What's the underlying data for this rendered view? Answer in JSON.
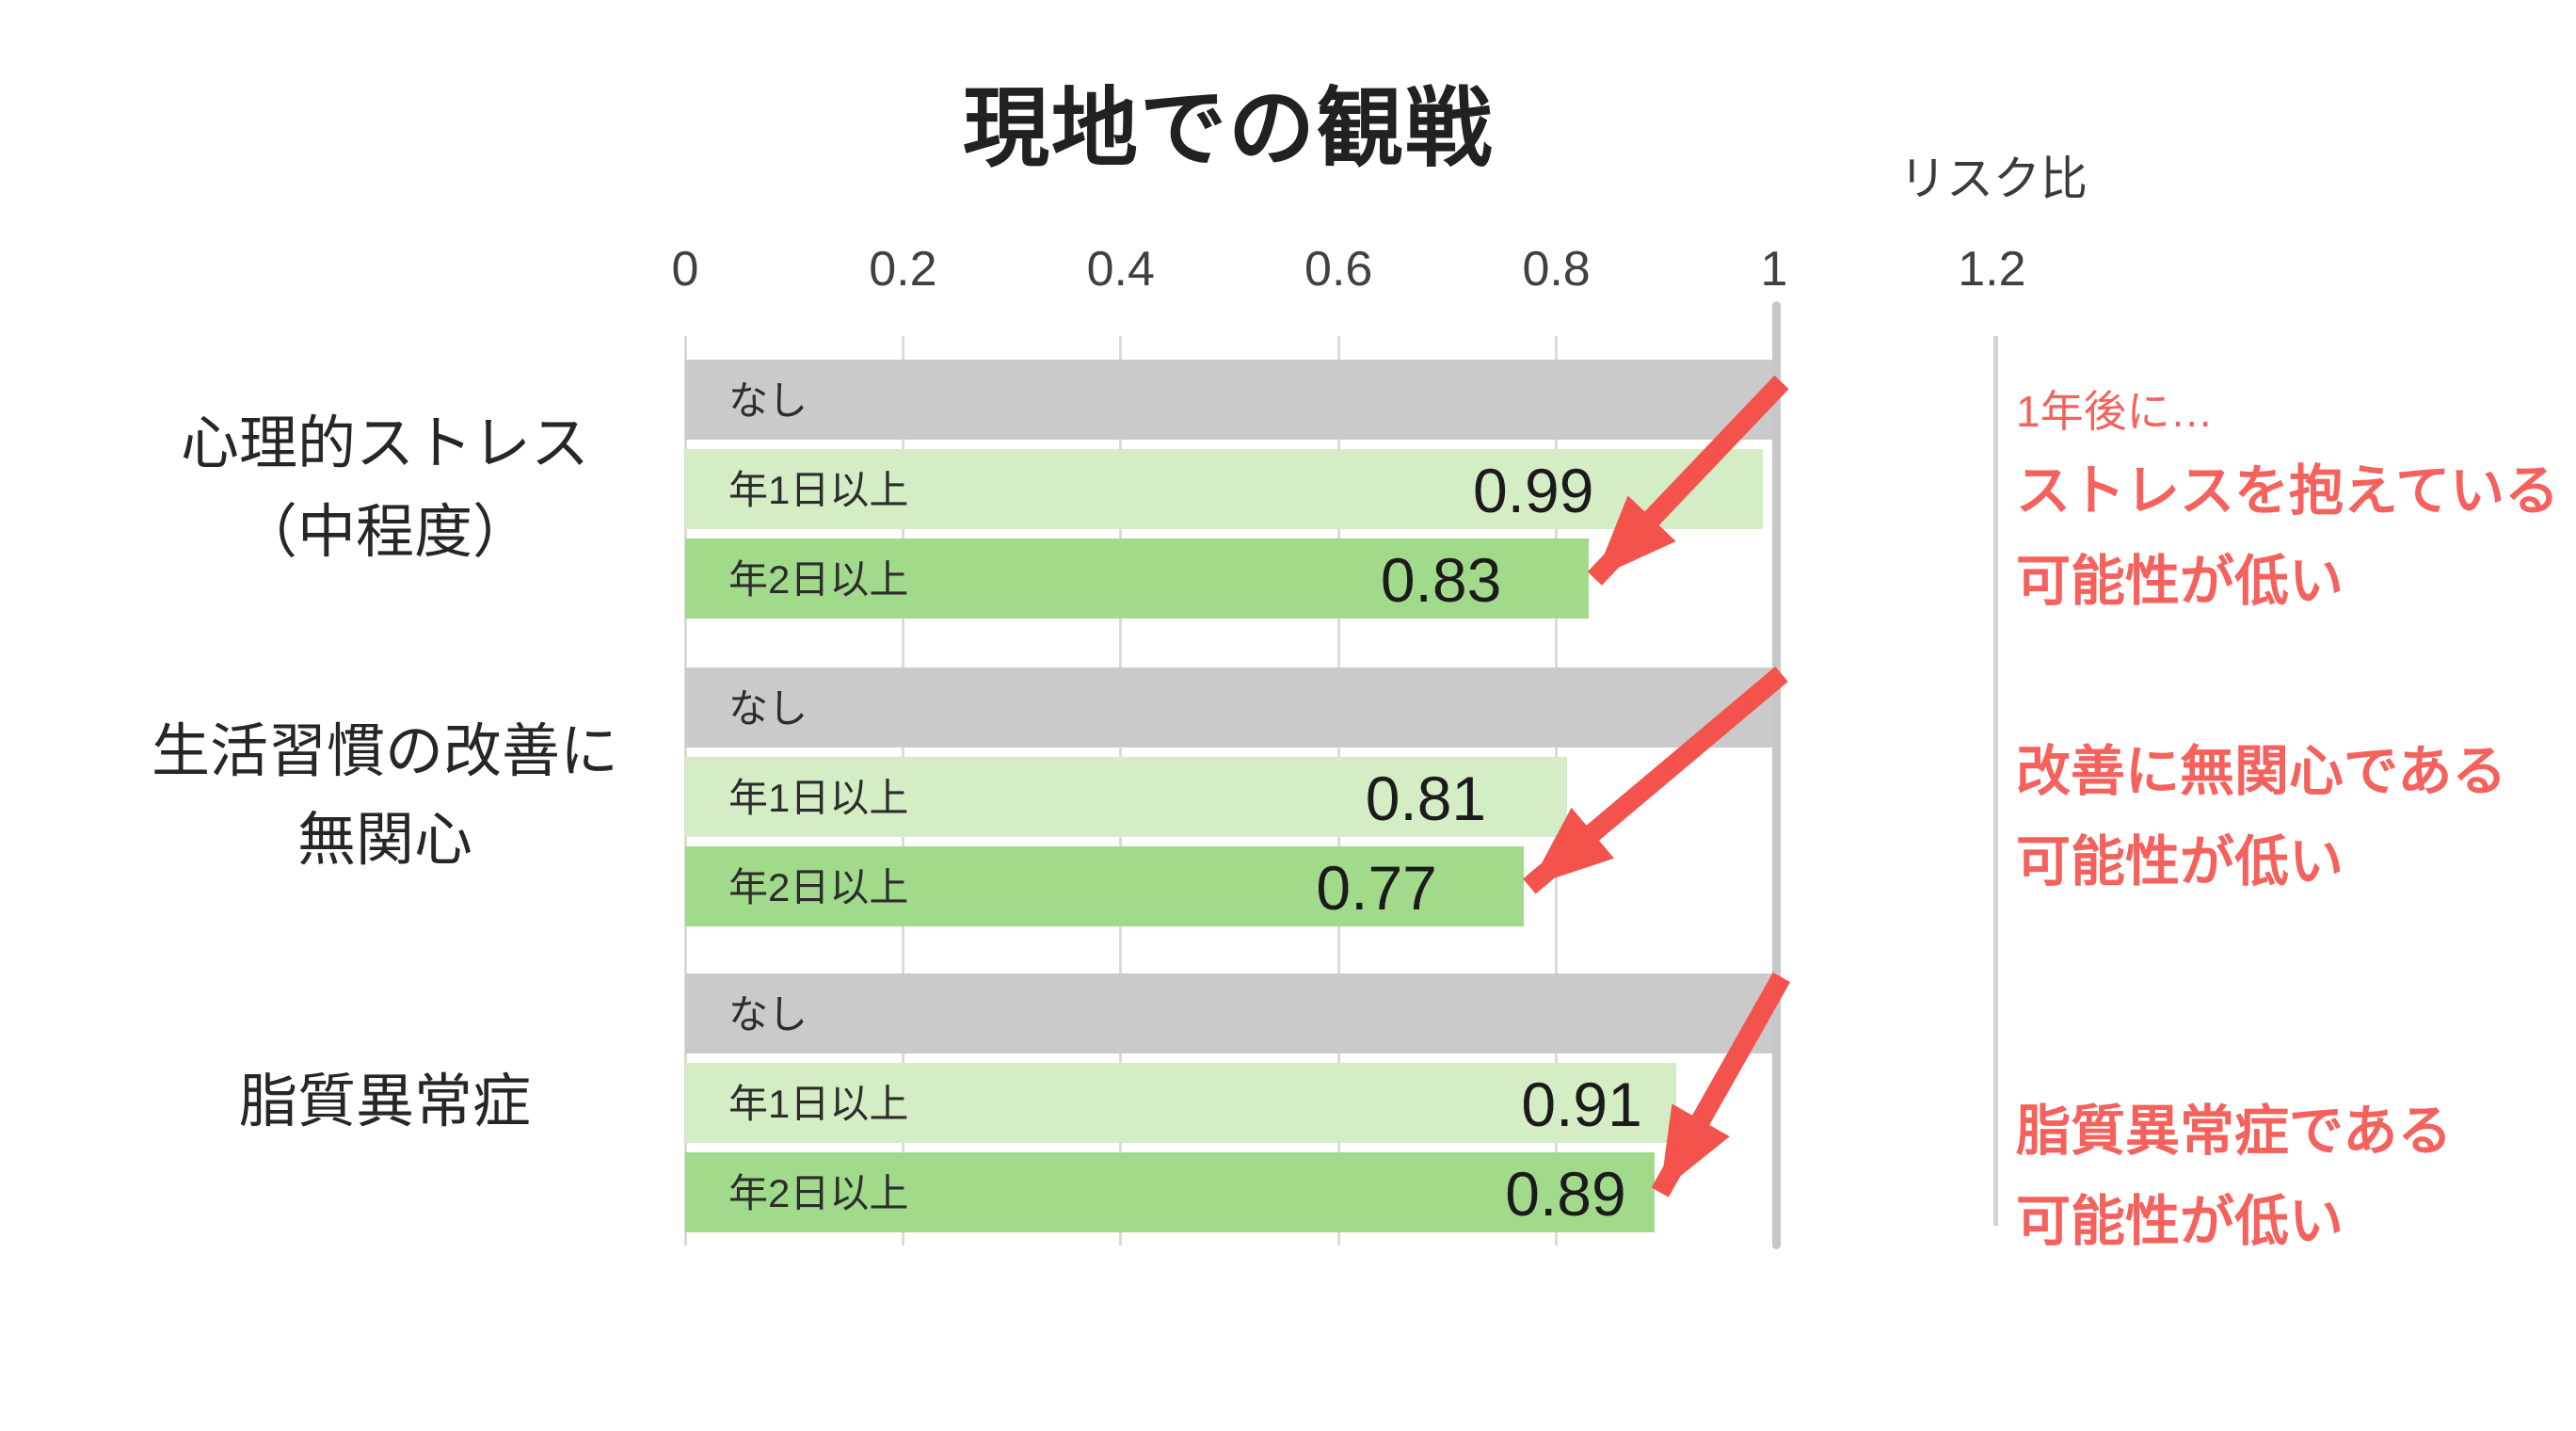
{
  "chart_data": {
    "type": "bar",
    "orientation": "horizontal",
    "title": "現地での観戦",
    "xlabel": "リスク比",
    "ylabel": "",
    "xlim": [
      0,
      1.2
    ],
    "x_ticks": [
      "0",
      "0.2",
      "0.4",
      "0.6",
      "0.8",
      "1",
      "1.2"
    ],
    "x_tick_values": [
      0,
      0.2,
      0.4,
      0.6,
      0.8,
      1,
      1.2
    ],
    "reference_line_value": 1,
    "grid": true,
    "bar_series_labels": [
      "なし",
      "年1日以上",
      "年2日以上"
    ],
    "groups": [
      {
        "category_lines": [
          "心理的ストレス",
          "（中程度）"
        ],
        "bars": [
          {
            "label": "なし",
            "value": 1.0,
            "value_label": "",
            "style": "none"
          },
          {
            "label": "年1日以上",
            "value": 0.99,
            "value_label": "0.99",
            "style": "light"
          },
          {
            "label": "年2日以上",
            "value": 0.83,
            "value_label": "0.83",
            "style": "dark"
          }
        ],
        "annotation_lead": "1年後に…",
        "annotation_lines": [
          "ストレスを抱えている",
          "可能性が低い"
        ]
      },
      {
        "category_lines": [
          "生活習慣の改善に",
          "無関心"
        ],
        "bars": [
          {
            "label": "なし",
            "value": 1.0,
            "value_label": "",
            "style": "none"
          },
          {
            "label": "年1日以上",
            "value": 0.81,
            "value_label": "0.81",
            "style": "light"
          },
          {
            "label": "年2日以上",
            "value": 0.77,
            "value_label": "0.77",
            "style": "dark"
          }
        ],
        "annotation_lead": "",
        "annotation_lines": [
          "改善に無関心である",
          "可能性が低い"
        ]
      },
      {
        "category_lines": [
          "脂質異常症"
        ],
        "bars": [
          {
            "label": "なし",
            "value": 1.0,
            "value_label": "",
            "style": "none"
          },
          {
            "label": "年1日以上",
            "value": 0.91,
            "value_label": "0.91",
            "style": "light"
          },
          {
            "label": "年2日以上",
            "value": 0.89,
            "value_label": "0.89",
            "style": "dark"
          }
        ],
        "annotation_lead": "",
        "annotation_lines": [
          "脂質異常症である",
          "可能性が低い"
        ]
      }
    ]
  },
  "colors": {
    "bar_none": "#CACACA",
    "bar_light": "#D5EDC4",
    "bar_dark": "#A2DA8C",
    "annotation_red": "#F5615C",
    "arrow_red": "#F4524D",
    "reference_line": "#C7C7C7",
    "secondary_line": "#D3D3D3",
    "gridline": "#DBDBDB"
  }
}
